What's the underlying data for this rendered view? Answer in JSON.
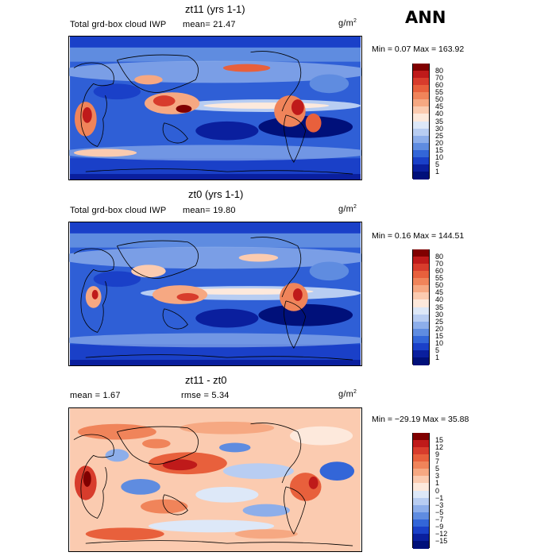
{
  "season": "ANN",
  "panels": [
    {
      "title": "zt11 (yrs 1-1)",
      "subtitle": "Total grd-box cloud IWP",
      "stat1": "mean=  21.47",
      "stat2": "",
      "units": "g/m",
      "units_exp": "2",
      "minmax": "Min =   0.07 Max = 163.92",
      "levels": [
        "80",
        "70",
        "60",
        "55",
        "50",
        "45",
        "40",
        "35",
        "30",
        "25",
        "20",
        "15",
        "10",
        "5",
        "1"
      ],
      "colors": [
        "#800000",
        "#bf1a1a",
        "#d83c2c",
        "#e8603c",
        "#f0845a",
        "#f6a882",
        "#fbcbb0",
        "#fde9dc",
        "#dde8f8",
        "#b8cdf2",
        "#8daeea",
        "#5f8ce0",
        "#3366d8",
        "#1a40c8",
        "#0a1f9e",
        "#00107a"
      ]
    },
    {
      "title": "zt0 (yrs 1-1)",
      "subtitle": "Total grd-box cloud IWP",
      "stat1": "mean=  19.80",
      "stat2": "",
      "units": "g/m",
      "units_exp": "2",
      "minmax": "Min =   0.16 Max = 144.51",
      "levels": [
        "80",
        "70",
        "60",
        "55",
        "50",
        "45",
        "40",
        "35",
        "30",
        "25",
        "20",
        "15",
        "10",
        "5",
        "1"
      ],
      "colors": [
        "#800000",
        "#bf1a1a",
        "#d83c2c",
        "#e8603c",
        "#f0845a",
        "#f6a882",
        "#fbcbb0",
        "#fde9dc",
        "#dde8f8",
        "#b8cdf2",
        "#8daeea",
        "#5f8ce0",
        "#3366d8",
        "#1a40c8",
        "#0a1f9e",
        "#00107a"
      ]
    },
    {
      "title": "zt11 - zt0",
      "subtitle": "mean =   1.67",
      "stat1": "",
      "stat2": "rmse =   5.34",
      "units": "g/m",
      "units_exp": "2",
      "minmax": "Min = −29.19 Max =  35.88",
      "levels": [
        "15",
        "12",
        "9",
        "7",
        "5",
        "3",
        "1",
        "0",
        "−1",
        "−3",
        "−5",
        "−7",
        "−9",
        "−12",
        "−15"
      ],
      "colors": [
        "#800000",
        "#bf1a1a",
        "#d83c2c",
        "#e8603c",
        "#f0845a",
        "#f6a882",
        "#fbcbb0",
        "#fde9dc",
        "#dde8f8",
        "#b8cdf2",
        "#8daeea",
        "#5f8ce0",
        "#3366d8",
        "#1a40c8",
        "#0a1f9e",
        "#00107a"
      ]
    }
  ]
}
